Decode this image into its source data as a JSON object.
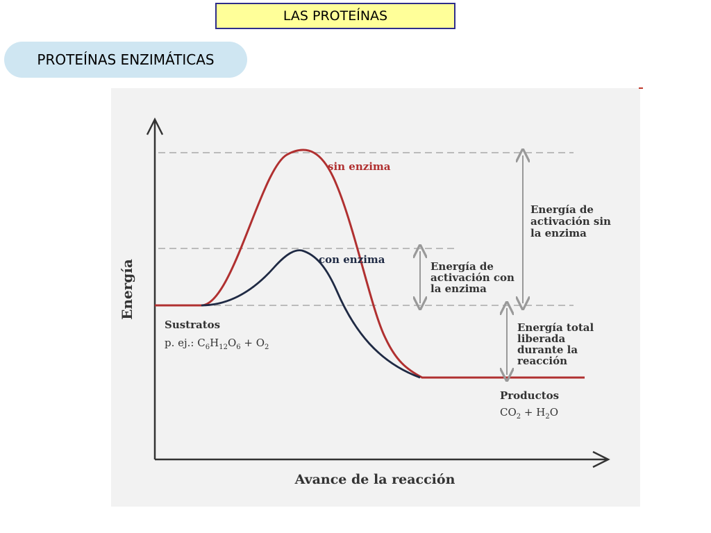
{
  "header": {
    "title": "LAS PROTEÍNAS",
    "subtitle": "PROTEÍNAS ENZIMÁTICAS"
  },
  "diagram": {
    "y_axis_label": "Energía",
    "x_axis_label": "Avance de la reacción",
    "curves": {
      "without_enzyme": "sin enzima",
      "with_enzyme": "con enzima"
    },
    "reactants": {
      "title": "Sustratos",
      "formula_prefix": "p. ej.: ",
      "formula": [
        "C",
        "6",
        "H",
        "12",
        "O",
        "6",
        " + O",
        "2"
      ]
    },
    "products": {
      "title": "Productos",
      "formula": [
        "CO",
        "2",
        " + H",
        "2",
        "O"
      ]
    },
    "annotations": {
      "activation_without_enzyme": [
        "Energía de",
        "activación sin",
        "la enzima"
      ],
      "activation_with_enzyme": [
        "Energía de",
        "activación con",
        "la enzima"
      ],
      "total_energy_released": [
        "Energía total",
        "liberada",
        "durante la",
        "reacción"
      ]
    },
    "colors": {
      "without_enzyme": "#b03030",
      "with_enzyme": "#1f2a44",
      "axis": "#333333",
      "guide_lines": "#bbbbbb",
      "arrows": "#999999"
    }
  }
}
